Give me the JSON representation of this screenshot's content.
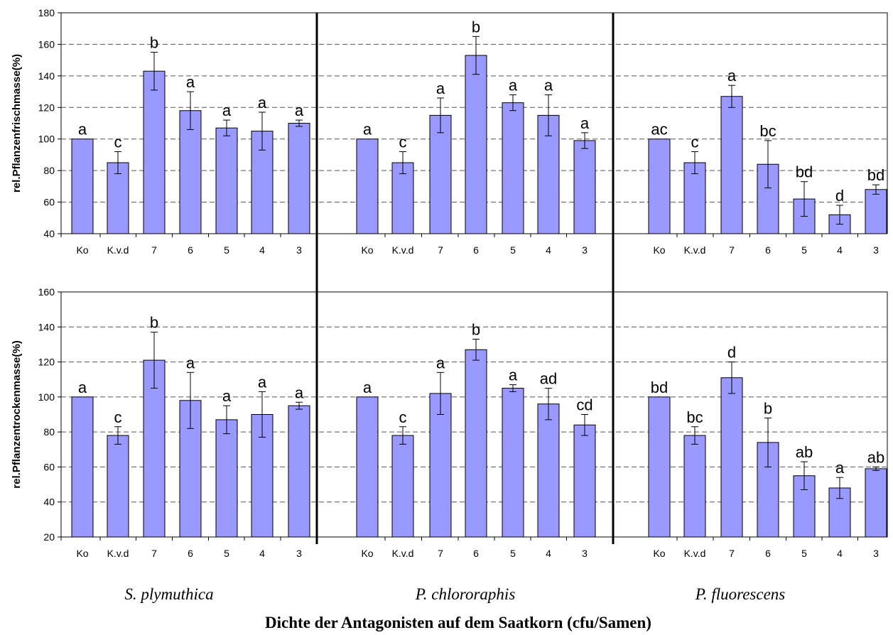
{
  "chart_data": {
    "type": "bar",
    "xlabel": "Dichte der Antagonisten auf dem Saatkorn (cfu/Samen)",
    "groups": [
      "S. plymuthica",
      "P. chlororaphis",
      "P. fluorescens"
    ],
    "categories": [
      "Ko",
      "K.v.d",
      "7",
      "6",
      "5",
      "4",
      "3"
    ],
    "bar_color": "#9999ff",
    "grid": "horizontal dashed",
    "panels": [
      {
        "ylabel": "rel.Pflanzenfrischmasse(%)",
        "ylim": [
          40,
          180
        ],
        "yticks": [
          40,
          60,
          80,
          100,
          120,
          140,
          160,
          180
        ],
        "series": [
          {
            "values": [
              100,
              85,
              143,
              118,
              107,
              105,
              110
            ],
            "errors": [
              0,
              7,
              12,
              12,
              5,
              12,
              2
            ],
            "letters": [
              "a",
              "c",
              "b",
              "a",
              "a",
              "a",
              "a"
            ]
          },
          {
            "values": [
              100,
              85,
              115,
              153,
              123,
              115,
              99
            ],
            "errors": [
              0,
              7,
              11,
              12,
              5,
              13,
              5
            ],
            "letters": [
              "a",
              "c",
              "a",
              "b",
              "a",
              "a",
              "a"
            ]
          },
          {
            "values": [
              100,
              85,
              127,
              84,
              62,
              52,
              68
            ],
            "errors": [
              0,
              7,
              7,
              15,
              11,
              6,
              3
            ],
            "letters": [
              "ac",
              "c",
              "a",
              "bc",
              "bd",
              "d",
              "bd"
            ]
          }
        ]
      },
      {
        "ylabel": "rel.Pflanzentrockenmasse(%)",
        "ylim": [
          20,
          160
        ],
        "yticks": [
          20,
          40,
          60,
          80,
          100,
          120,
          140,
          160
        ],
        "series": [
          {
            "values": [
              100,
              78,
              121,
              98,
              87,
              90,
              95
            ],
            "errors": [
              0,
              5,
              16,
              16,
              8,
              13,
              2
            ],
            "letters": [
              "a",
              "c",
              "b",
              "a",
              "a",
              "a",
              "a"
            ]
          },
          {
            "values": [
              100,
              78,
              102,
              127,
              105,
              96,
              84
            ],
            "errors": [
              0,
              5,
              12,
              6,
              2,
              9,
              6
            ],
            "letters": [
              "a",
              "c",
              "a",
              "b",
              "a",
              "ad",
              "cd"
            ]
          },
          {
            "values": [
              100,
              78,
              111,
              74,
              55,
              48,
              59
            ],
            "errors": [
              0,
              5,
              9,
              14,
              8,
              6,
              1
            ],
            "letters": [
              "bd",
              "bc",
              "d",
              "b",
              "ab",
              "a",
              "ab"
            ]
          }
        ]
      }
    ]
  }
}
